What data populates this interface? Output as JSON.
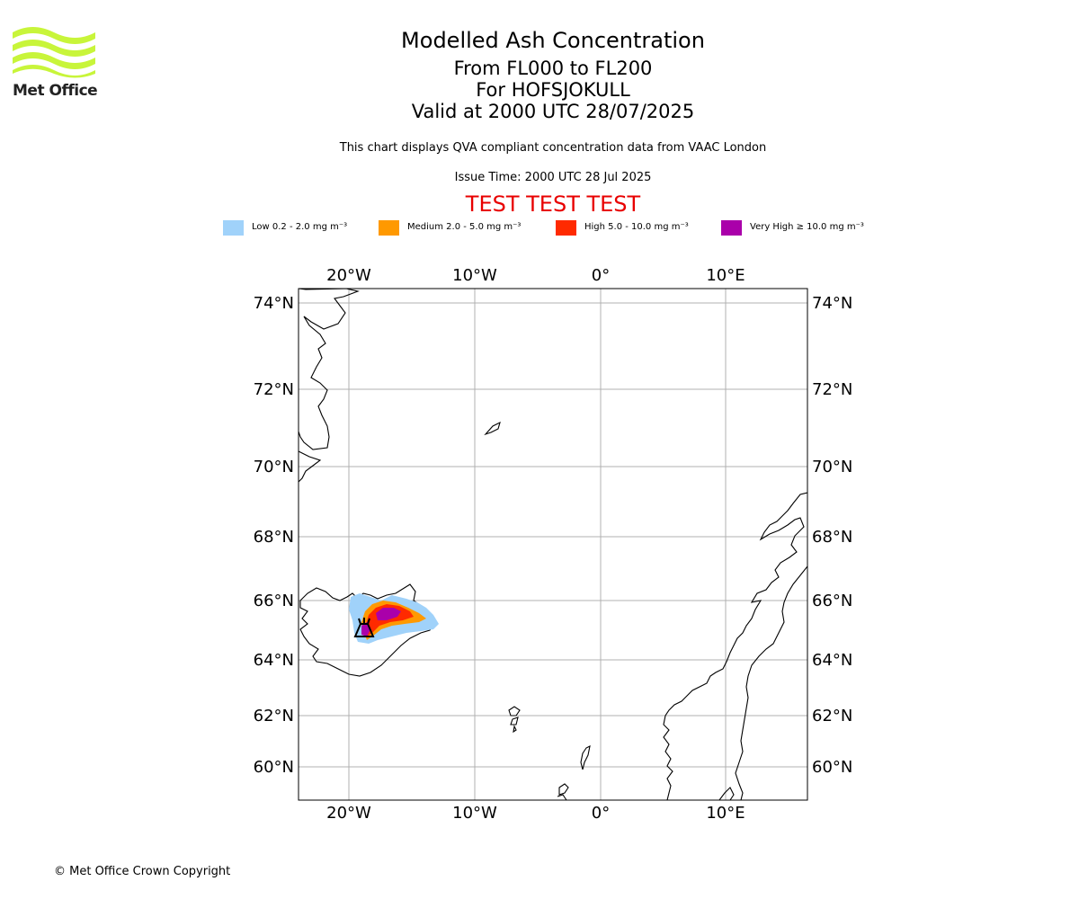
{
  "logo": {
    "text": "Met Office"
  },
  "title": {
    "line1": "Modelled Ash Concentration",
    "line2": "From FL000 to FL200",
    "line3": "For HOFSJOKULL",
    "line4": "Valid at 2000 UTC 28/07/2025"
  },
  "subtitle": "This chart displays QVA compliant concentration data from VAAC London",
  "issue_time": "Issue Time: 2000 UTC 28 Jul 2025",
  "test_banner": "TEST TEST TEST",
  "legend": [
    {
      "label": "Low 0.2 - 2.0 mg m⁻³",
      "color": "#a0d2fa"
    },
    {
      "label": "Medium 2.0 - 5.0 mg m⁻³",
      "color": "#ff9900"
    },
    {
      "label": "High 5.0 - 10.0 mg m⁻³",
      "color": "#ff2a00"
    },
    {
      "label": "Very High ≥ 10.0 mg m⁻³",
      "color": "#aa00aa"
    }
  ],
  "map": {
    "lon_labels": [
      "20°W",
      "10°W",
      "0°",
      "10°E"
    ],
    "lat_labels": [
      "74°N",
      "72°N",
      "70°N",
      "68°N",
      "66°N",
      "64°N",
      "62°N",
      "60°N"
    ],
    "volcano": "HOFSJOKULL"
  },
  "copyright": "© Met Office Crown Copyright"
}
